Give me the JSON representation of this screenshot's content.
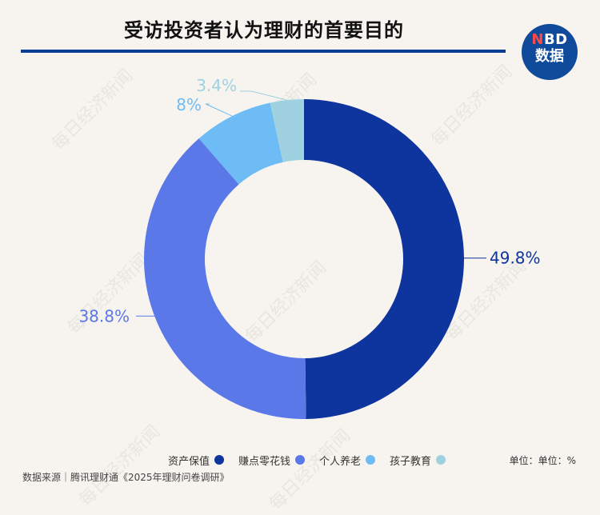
{
  "title": "受访投资者认为理财的首要目的",
  "logo": {
    "top_text": "NBD",
    "bottom_text": "数据"
  },
  "watermark_text": "每日经济新闻",
  "unit_text": "单位：单位：%",
  "source_text": "数据来源｜腾讯理财通《2025年理财问卷调研》",
  "colors": {
    "title_rule": "#0b3e93",
    "background": "#f7f4ef"
  },
  "chart_data": {
    "type": "pie",
    "donut": true,
    "title": "受访投资者认为理财的首要目的",
    "slices": [
      {
        "label": "资产保值",
        "value": 49.8,
        "display": "49.8%",
        "color": "#0e349d"
      },
      {
        "label": "赚点零花钱",
        "value": 38.8,
        "display": "38.8%",
        "color": "#5b78e8"
      },
      {
        "label": "个人养老",
        "value": 8.0,
        "display": "8%",
        "color": "#6ebcf5"
      },
      {
        "label": "孩子教育",
        "value": 3.4,
        "display": "3.4%",
        "color": "#9fd1e0"
      }
    ],
    "legend_position": "bottom"
  }
}
